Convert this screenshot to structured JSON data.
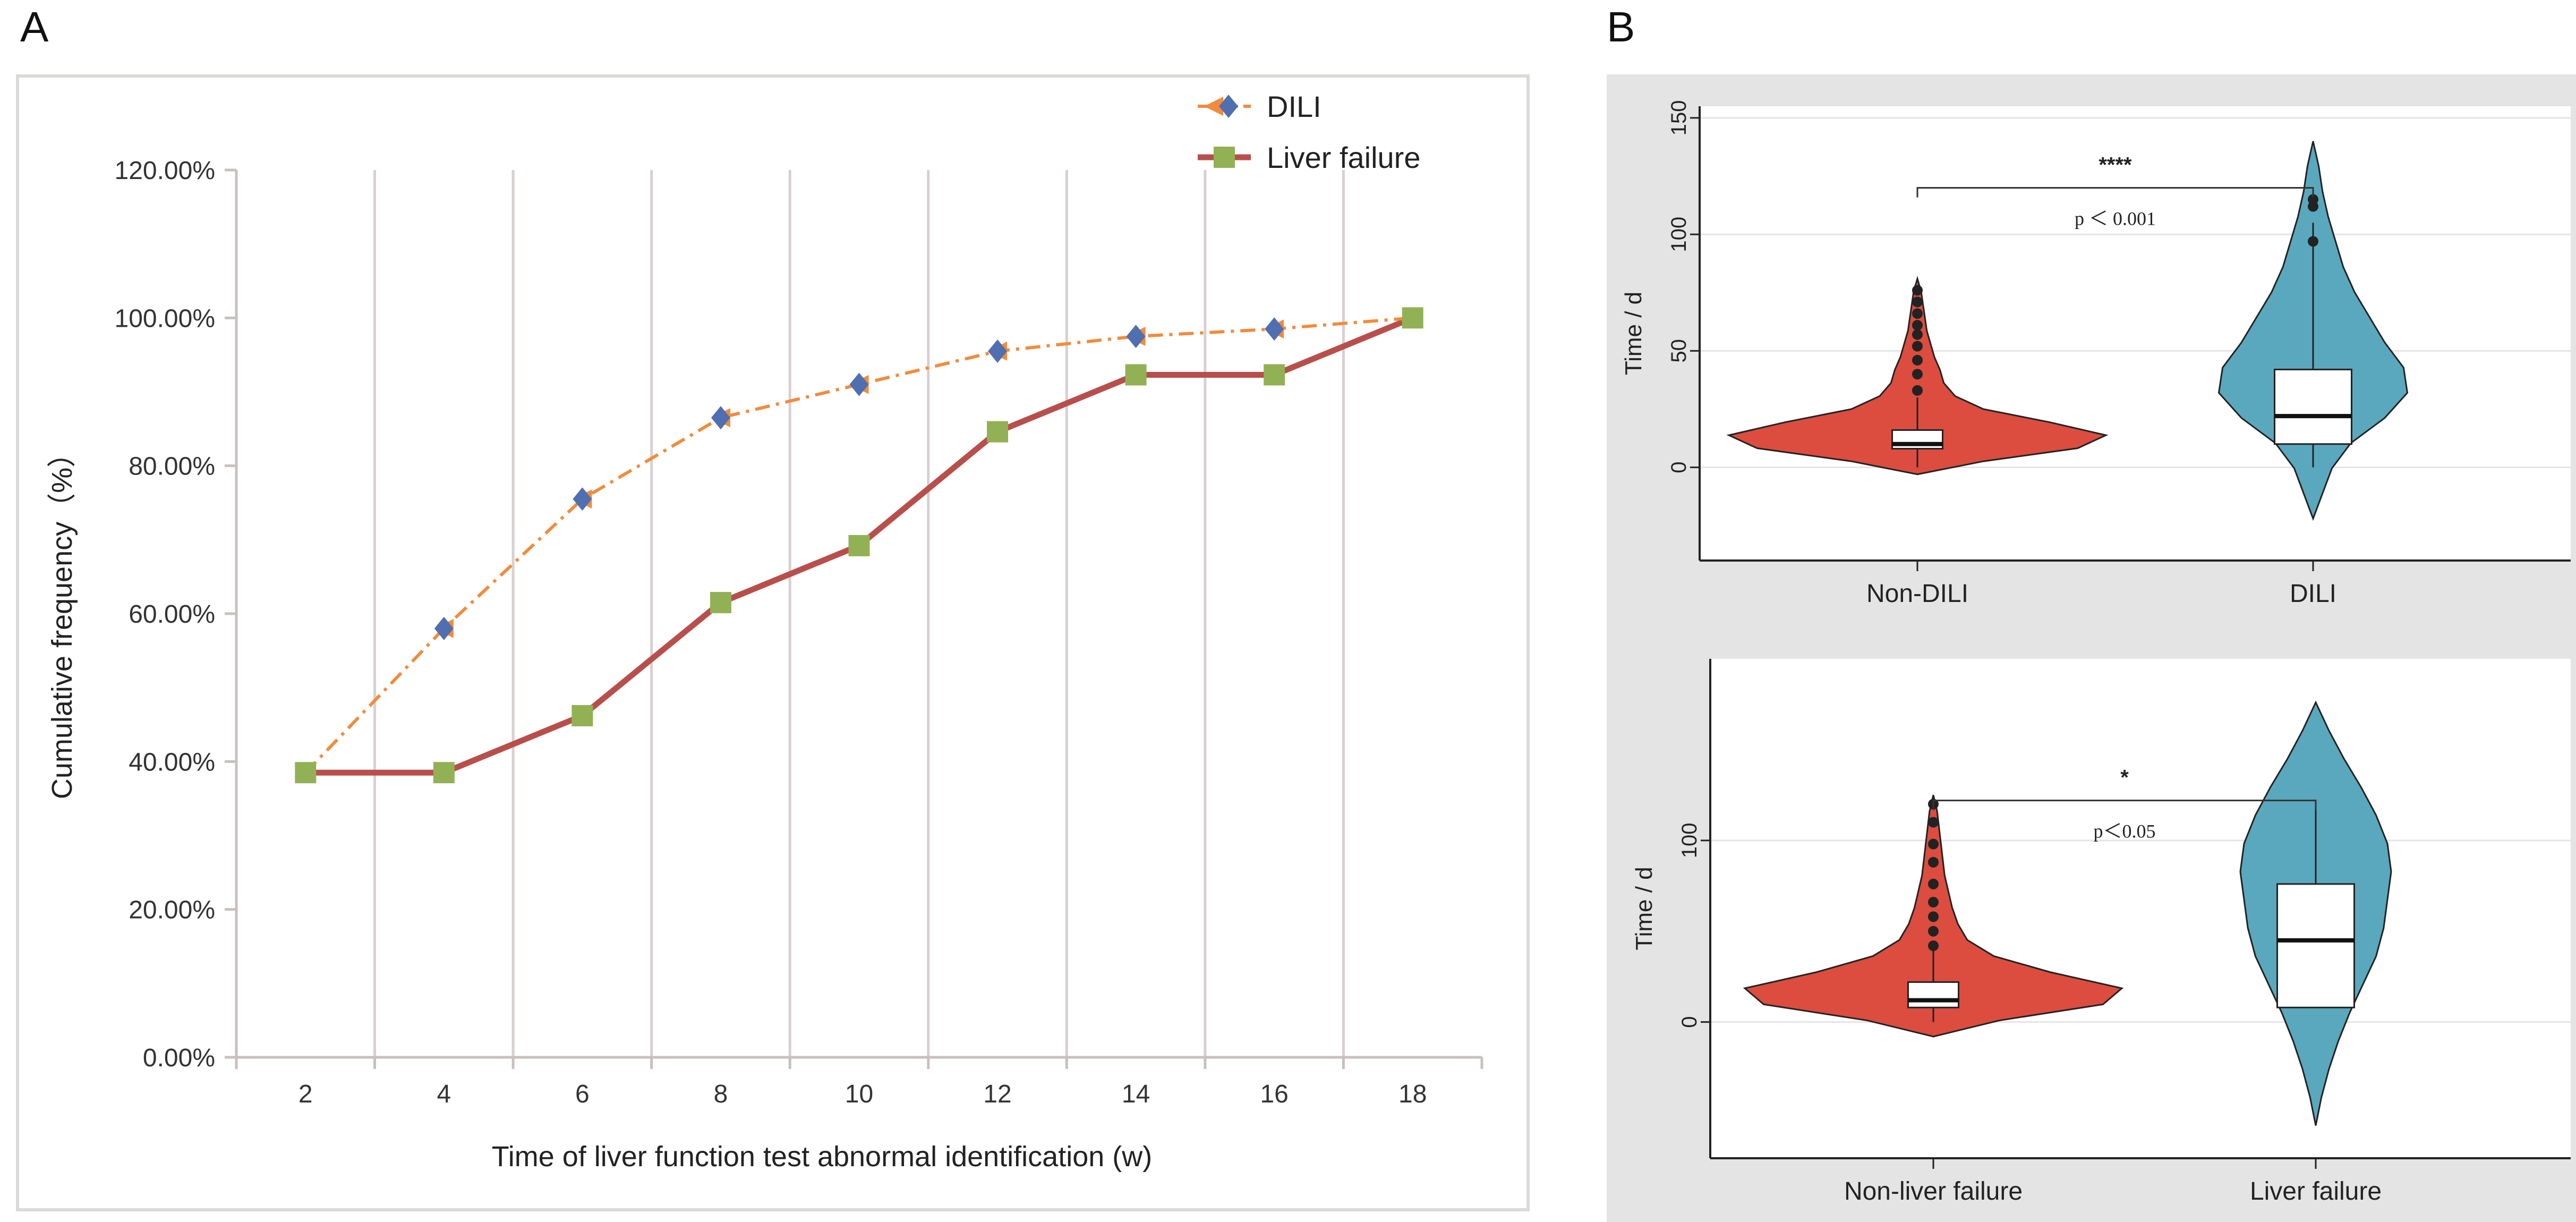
{
  "panel_a": {
    "letter": "A"
  },
  "panel_b": {
    "letter": "B"
  },
  "chart_data": [
    {
      "type": "line",
      "x": [
        2,
        4,
        6,
        8,
        10,
        12,
        14,
        16,
        18
      ],
      "x_ticks": [
        "2",
        "4",
        "6",
        "8",
        "10",
        "12",
        "14",
        "16",
        "18"
      ],
      "xlabel": "Time of  liver function test abnormal identification  (w)",
      "ylabel": "Cumulative frequency（%）",
      "ylim": [
        0,
        120
      ],
      "y_ticks": [
        "0.00%",
        "20.00%",
        "40.00%",
        "60.00%",
        "80.00%",
        "100.00%",
        "120.00%"
      ],
      "grid": "vertical",
      "legend_position": "top-right",
      "series": [
        {
          "name": "DILI",
          "values": [
            38.5,
            58,
            75.5,
            86.5,
            91,
            95.5,
            97.5,
            98.5,
            100
          ],
          "color": "#f28b3c",
          "marker_color": "#4f6fb0",
          "style": "dash-dot"
        },
        {
          "name": "Liver failure",
          "values": [
            38.5,
            38.5,
            46.2,
            61.5,
            69.2,
            84.6,
            92.3,
            92.3,
            100
          ],
          "color": "#b84f4c",
          "marker_color": "#92b155",
          "style": "solid"
        }
      ]
    },
    {
      "type": "violin",
      "categories": [
        "Non-DILI",
        "DILI"
      ],
      "ylabel": "Time / d",
      "ylim": [
        -40,
        155
      ],
      "y_ticks": [
        0,
        50,
        100,
        150
      ],
      "grid": "horizontal",
      "colors": [
        "#dc4c3f",
        "#5aa8bd"
      ],
      "box": [
        {
          "q1": 8,
          "median": 10,
          "q3": 16,
          "min": 0,
          "max": 30
        },
        {
          "q1": 10,
          "median": 22,
          "q3": 42,
          "min": 0,
          "max": 105
        }
      ],
      "range": [
        [
          -3,
          81
        ],
        [
          -22,
          140
        ]
      ],
      "significance": {
        "stars": "****",
        "p_text": "p ＜ 0.001",
        "bracket_y": 120
      }
    },
    {
      "type": "violin",
      "categories": [
        "Non-liver failure",
        "Liver failure"
      ],
      "ylabel": "Time / d",
      "ylim": [
        -75,
        200
      ],
      "y_ticks": [
        0,
        100
      ],
      "grid": "horizontal",
      "colors": [
        "#dc4c3f",
        "#5aa8bd"
      ],
      "box": [
        {
          "q1": 8,
          "median": 12,
          "q3": 22,
          "min": 0,
          "max": 40
        },
        {
          "q1": 8,
          "median": 45,
          "q3": 76,
          "min": 8,
          "max": 118
        }
      ],
      "range": [
        [
          -8,
          125
        ],
        [
          -57,
          176
        ]
      ],
      "significance": {
        "stars": "*",
        "p_text": "p＜0.05",
        "bracket_y": 122
      }
    }
  ]
}
